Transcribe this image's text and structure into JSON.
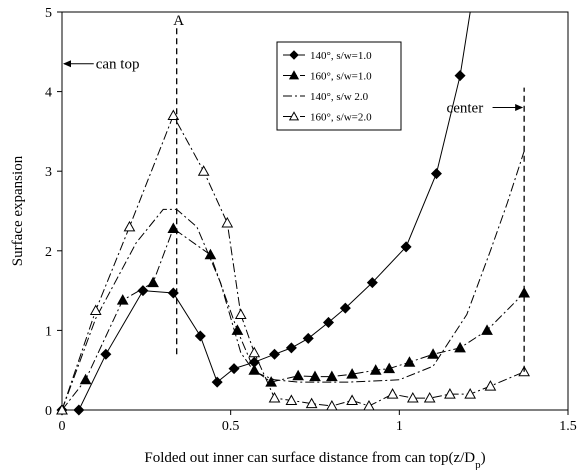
{
  "chart_data": {
    "type": "line",
    "title": "",
    "xlabel": "Folded out inner can surface distance from can top(z/D",
    "xlabel_sub": "p",
    "xlabel_end": ")",
    "ylabel": "Surface expansion",
    "xlim": [
      0,
      1.5
    ],
    "ylim": [
      0,
      5
    ],
    "xticks": [
      0,
      0.5,
      1,
      1.5
    ],
    "xtick_labels": [
      "0",
      "0.5",
      "1",
      "1.5"
    ],
    "yticks": [
      0,
      1,
      2,
      3,
      4,
      5
    ],
    "ytick_labels": [
      "0",
      "1",
      "2",
      "3",
      "4",
      "5"
    ],
    "grid": false,
    "legend_position": "top-center",
    "series": [
      {
        "name": "140°, s/w=1.0",
        "marker": "diamond-filled",
        "line": "solid",
        "points": [
          [
            0,
            0
          ],
          [
            0.05,
            0
          ],
          [
            0.13,
            0.7
          ],
          [
            0.24,
            1.5
          ],
          [
            0.33,
            1.47
          ],
          [
            0.41,
            0.93
          ],
          [
            0.46,
            0.35
          ],
          [
            0.51,
            0.52
          ],
          [
            0.57,
            0.6
          ],
          [
            0.63,
            0.7
          ],
          [
            0.68,
            0.78
          ],
          [
            0.73,
            0.9
          ],
          [
            0.79,
            1.1
          ],
          [
            0.84,
            1.28
          ],
          [
            0.92,
            1.6
          ],
          [
            1.02,
            2.05
          ],
          [
            1.11,
            2.97
          ],
          [
            1.18,
            4.2
          ],
          [
            1.21,
            5.0
          ]
        ]
      },
      {
        "name": "160°, s/w=1.0",
        "marker": "triangle-filled",
        "line": "dash-dot",
        "points": [
          [
            0,
            0
          ],
          [
            0.07,
            0.38
          ],
          [
            0.18,
            1.38
          ],
          [
            0.27,
            1.6
          ],
          [
            0.33,
            2.28
          ],
          [
            0.44,
            1.95
          ],
          [
            0.52,
            1.0
          ],
          [
            0.57,
            0.5
          ],
          [
            0.62,
            0.35
          ],
          [
            0.7,
            0.43
          ],
          [
            0.75,
            0.42
          ],
          [
            0.8,
            0.42
          ],
          [
            0.86,
            0.45
          ],
          [
            0.93,
            0.5
          ],
          [
            0.97,
            0.52
          ],
          [
            1.03,
            0.6
          ],
          [
            1.1,
            0.7
          ],
          [
            1.18,
            0.78
          ],
          [
            1.26,
            1.0
          ],
          [
            1.37,
            1.47
          ]
        ]
      },
      {
        "name": "140°, s/w 2.0",
        "marker": "none",
        "line": "dash-dot",
        "points": [
          [
            0,
            0
          ],
          [
            0.1,
            1.15
          ],
          [
            0.22,
            2.1
          ],
          [
            0.3,
            2.52
          ],
          [
            0.34,
            2.52
          ],
          [
            0.4,
            2.3
          ],
          [
            0.47,
            1.6
          ],
          [
            0.53,
            0.72
          ],
          [
            0.57,
            0.48
          ],
          [
            0.63,
            0.38
          ],
          [
            0.7,
            0.35
          ],
          [
            0.85,
            0.35
          ],
          [
            1.0,
            0.38
          ],
          [
            1.1,
            0.55
          ],
          [
            1.2,
            1.2
          ],
          [
            1.27,
            2.0
          ],
          [
            1.32,
            2.6
          ],
          [
            1.37,
            3.25
          ]
        ]
      },
      {
        "name": "160°, s/w=2.0",
        "marker": "triangle-open",
        "line": "dash-dot",
        "points": [
          [
            0,
            0
          ],
          [
            0.1,
            1.25
          ],
          [
            0.2,
            2.3
          ],
          [
            0.33,
            3.7
          ],
          [
            0.42,
            3.0
          ],
          [
            0.49,
            2.35
          ],
          [
            0.53,
            1.2
          ],
          [
            0.57,
            0.72
          ],
          [
            0.63,
            0.15
          ],
          [
            0.68,
            0.12
          ],
          [
            0.74,
            0.08
          ],
          [
            0.8,
            0.05
          ],
          [
            0.86,
            0.12
          ],
          [
            0.91,
            0.05
          ],
          [
            0.98,
            0.2
          ],
          [
            1.04,
            0.15
          ],
          [
            1.09,
            0.15
          ],
          [
            1.15,
            0.2
          ],
          [
            1.21,
            0.2
          ],
          [
            1.27,
            0.3
          ],
          [
            1.37,
            0.48
          ]
        ]
      }
    ],
    "annotations": {
      "marker_A": {
        "label": "A",
        "x": 0.34,
        "y_from": 0.7,
        "y_to": 4.8
      },
      "can_top": {
        "label": "can top",
        "x_from": 0,
        "x_to": 0.1,
        "y": 4.35
      },
      "center": {
        "label": "center",
        "x_from": 1.14,
        "x_to": 1.37,
        "y": 3.8,
        "line_x": 1.37,
        "line_y_from": 0.48,
        "line_y_to": 4.05
      }
    }
  }
}
